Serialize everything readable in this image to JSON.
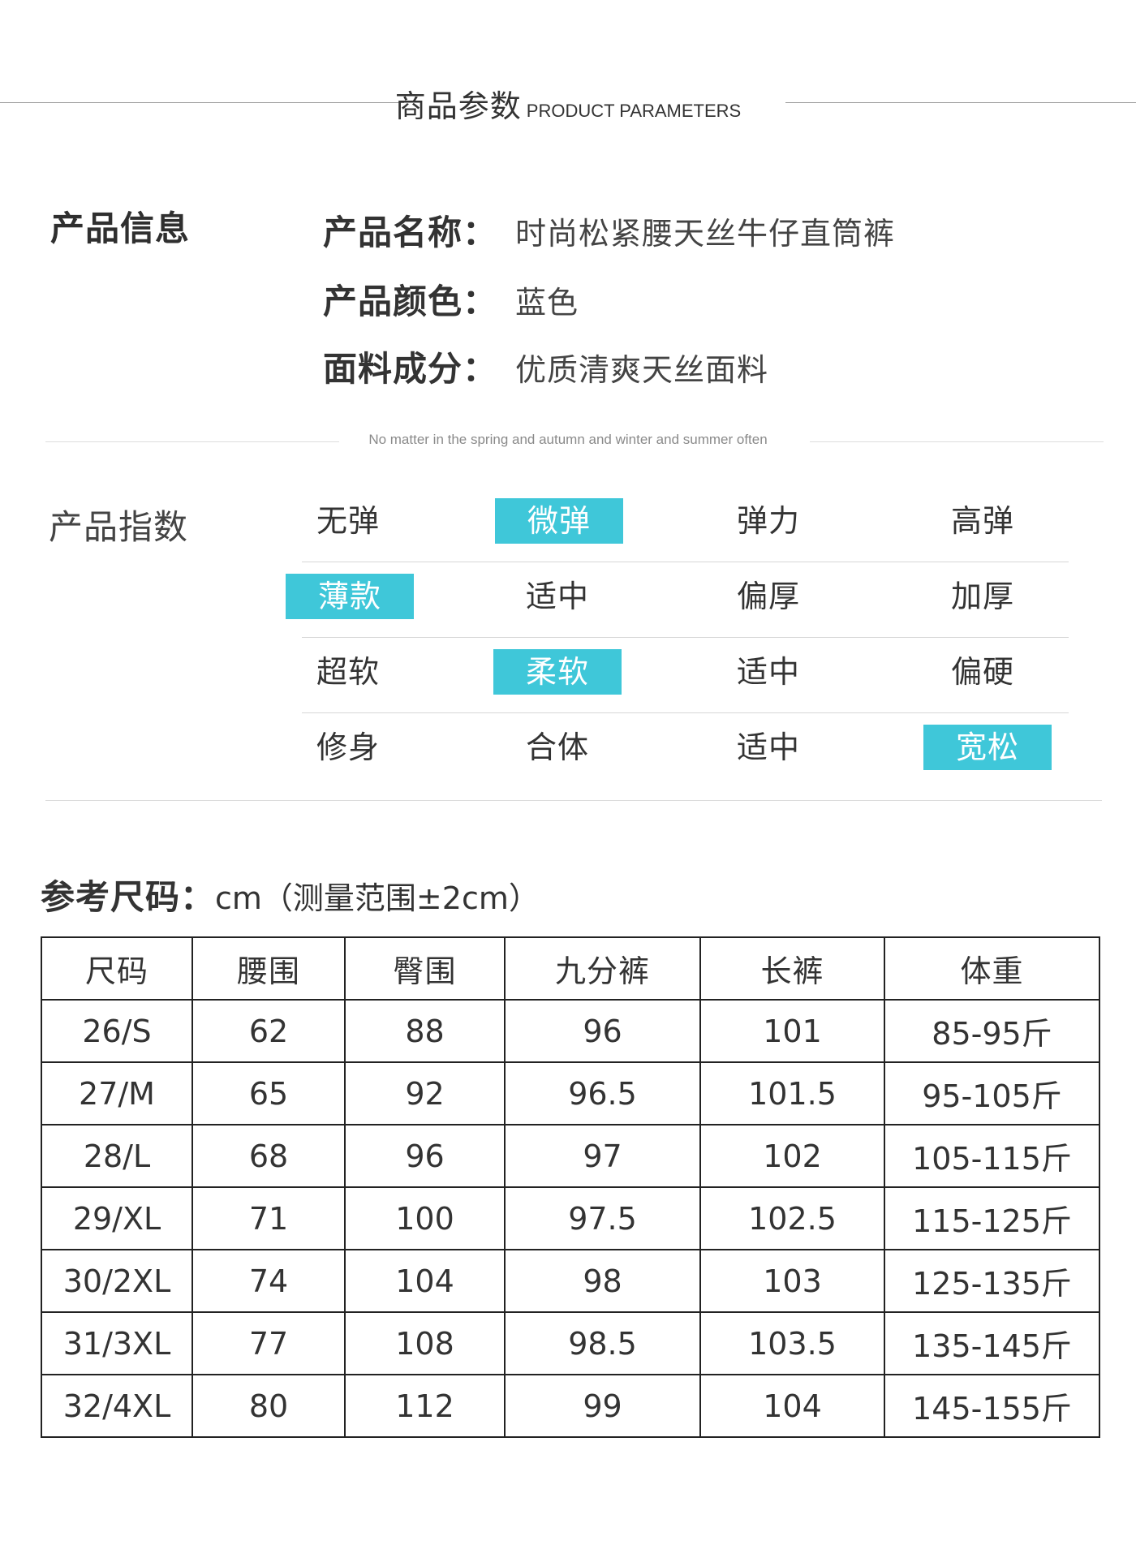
{
  "header": {
    "title_cn": "商品参数",
    "title_en": "PRODUCT PARAMETERS"
  },
  "product_info": {
    "heading": "产品信息",
    "rows": [
      {
        "key": "产品名称：",
        "value": "时尚松紧腰天丝牛仔直筒裤"
      },
      {
        "key": "产品颜色：",
        "value": "蓝色"
      },
      {
        "key": "面料成分：",
        "value": "优质清爽天丝面料"
      }
    ]
  },
  "tagline": "No matter in the spring and autumn and winter and summer often",
  "product_index": {
    "heading": "产品指数",
    "accent_color": "#3fc7d9",
    "rows": [
      {
        "options": [
          "无弹",
          "微弹",
          "弹力",
          "高弹"
        ],
        "selected_index": 1
      },
      {
        "options": [
          "薄款",
          "适中",
          "偏厚",
          "加厚"
        ],
        "selected_index": 0
      },
      {
        "options": [
          "超软",
          "柔软",
          "适中",
          "偏硬"
        ],
        "selected_index": 1
      },
      {
        "options": [
          "修身",
          "合体",
          "适中",
          "宽松"
        ],
        "selected_index": 3
      }
    ]
  },
  "size_reference": {
    "label": "参考尺码：",
    "note": "cm（测量范围±2cm）",
    "columns": [
      "尺码",
      "腰围",
      "臀围",
      "九分裤",
      "长裤",
      "体重"
    ],
    "rows": [
      [
        "26/S",
        "62",
        "88",
        "96",
        "101",
        "85-95斤"
      ],
      [
        "27/M",
        "65",
        "92",
        "96.5",
        "101.5",
        "95-105斤"
      ],
      [
        "28/L",
        "68",
        "96",
        "97",
        "102",
        "105-115斤"
      ],
      [
        "29/XL",
        "71",
        "100",
        "97.5",
        "102.5",
        "115-125斤"
      ],
      [
        "30/2XL",
        "74",
        "104",
        "98",
        "103",
        "125-135斤"
      ],
      [
        "31/3XL",
        "77",
        "108",
        "98.5",
        "103.5",
        "135-145斤"
      ],
      [
        "32/4XL",
        "80",
        "112",
        "99",
        "104",
        "145-155斤"
      ]
    ]
  }
}
